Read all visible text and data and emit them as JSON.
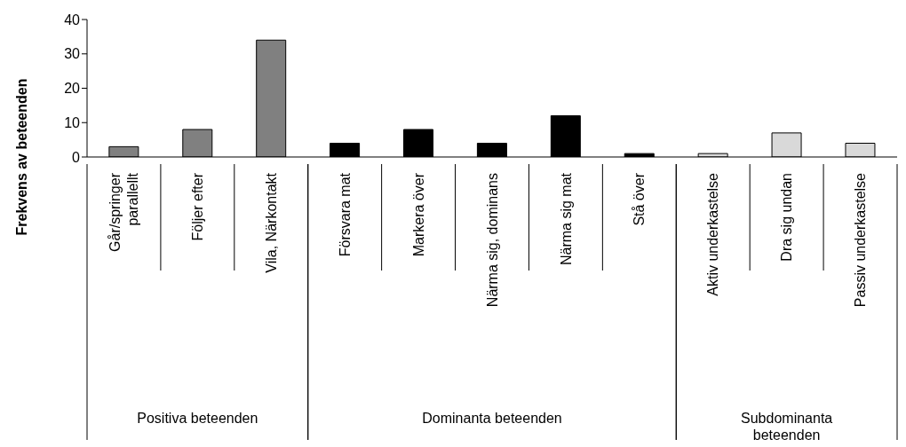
{
  "chart_data": {
    "type": "bar",
    "ylabel": "Frekvens av beteenden",
    "categories": [
      "Går/springer parallellt",
      "Följer efter",
      "Vila, Närkontakt",
      "Försvara mat",
      "Markera över",
      "Närma sig, dominans",
      "Närma sig mat",
      "Stå över",
      "Aktiv underkastelse",
      "Dra sig undan",
      "Passiv underkastelse"
    ],
    "series": [
      {
        "color": "#808080",
        "values": [
          3,
          8,
          34,
          null,
          null,
          null,
          null,
          null,
          null,
          null,
          null
        ]
      },
      {
        "color": "#000000",
        "values": [
          null,
          null,
          null,
          4,
          8,
          4,
          12,
          1,
          null,
          null,
          null
        ]
      },
      {
        "color": "#d9d9d9",
        "values": [
          null,
          null,
          null,
          null,
          null,
          null,
          null,
          null,
          1,
          7,
          4
        ]
      }
    ],
    "annotations": [
      "Positiva beteenden",
      "Dominanta beteenden",
      "Subdominanta beteenden"
    ],
    "ylim": [
      0,
      40
    ],
    "yticks": [
      0,
      10,
      20,
      30,
      40
    ],
    "grid": false
  }
}
